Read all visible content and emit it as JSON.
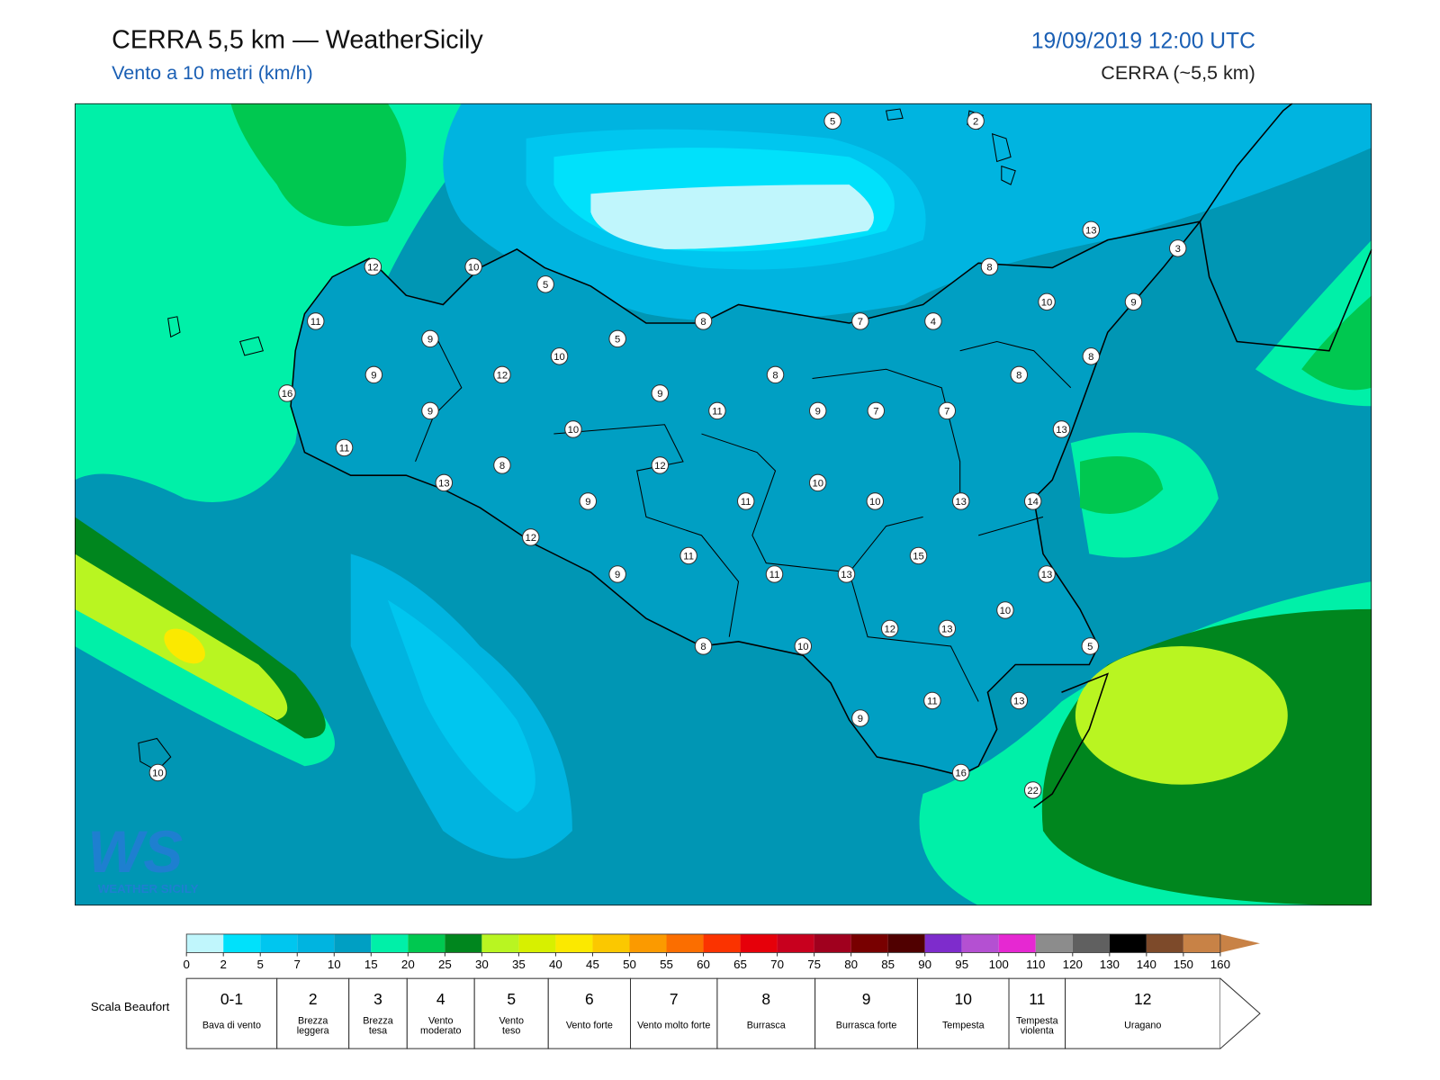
{
  "header": {
    "title": "CERRA 5,5 km — WeatherSicily",
    "subtitle": "Vento a 10 metri (km/h)",
    "date": "19/09/2019 12:00 UTC",
    "model": "CERRA (~5,5 km)"
  },
  "stations": [
    5,
    2,
    13,
    3,
    12,
    10,
    5,
    8,
    10,
    9,
    11,
    8,
    7,
    4,
    9,
    5,
    10,
    8,
    9,
    12,
    8,
    8,
    16,
    9,
    9,
    11,
    9,
    7,
    7,
    10,
    13,
    11,
    8,
    12,
    13,
    10,
    9,
    11,
    10,
    13,
    14,
    12,
    11,
    15,
    9,
    11,
    13,
    13,
    10,
    12,
    13,
    8,
    10,
    5,
    11,
    13,
    9,
    16,
    22,
    10
  ],
  "logo": {
    "mark": "WS",
    "text": "WEATHER SICILY"
  },
  "colorbar": {
    "ticks": [
      0,
      2,
      5,
      7,
      10,
      15,
      20,
      25,
      30,
      35,
      40,
      45,
      50,
      55,
      60,
      65,
      70,
      75,
      80,
      85,
      90,
      95,
      100,
      110,
      120,
      130,
      140,
      150,
      160
    ],
    "colors": [
      "#c0f6fc",
      "#00e1fb",
      "#00c6ef",
      "#00b4e0",
      "#009fc3",
      "#00f0a8",
      "#00c850",
      "#00861e",
      "#b9f521",
      "#d7f000",
      "#fbe900",
      "#fbc800",
      "#fb9a00",
      "#fb6e00",
      "#fb3300",
      "#e6000a",
      "#c8001e",
      "#a0001e",
      "#780000",
      "#500000",
      "#7e2ccc",
      "#b450d2",
      "#e628d2",
      "#8c8c8c",
      "#606060",
      "#000000",
      "#7d4a2a",
      "#c88246"
    ]
  },
  "beaufort": {
    "title": "Scala Beaufort",
    "levels": [
      {
        "force": "0-1",
        "label": "Bava di vento"
      },
      {
        "force": 2,
        "label": "Brezza leggera"
      },
      {
        "force": 3,
        "label": "Brezza tesa"
      },
      {
        "force": 4,
        "label": "Vento moderato"
      },
      {
        "force": 5,
        "label": "Vento teso"
      },
      {
        "force": 6,
        "label": "Vento forte"
      },
      {
        "force": 7,
        "label": "Vento molto forte"
      },
      {
        "force": 8,
        "label": "Burrasca"
      },
      {
        "force": 9,
        "label": "Burrasca forte"
      },
      {
        "force": 10,
        "label": "Tempesta"
      },
      {
        "force": 11,
        "label": "Tempesta violenta"
      },
      {
        "force": 12,
        "label": "Uragano"
      }
    ]
  }
}
